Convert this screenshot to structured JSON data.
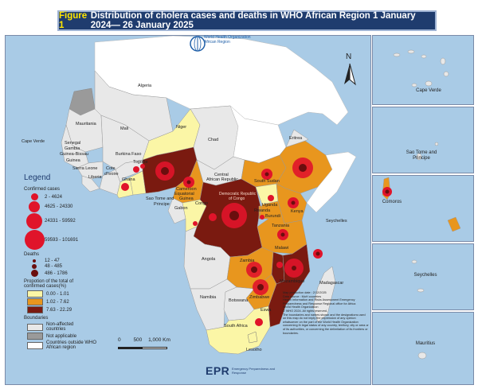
{
  "title": {
    "figure_label": "Figure 1",
    "text": "Distribution of cholera cases and deaths in WHO African Region 1 January 2024— 26 January 2025"
  },
  "who_logo": {
    "org": "World Health Organization",
    "region": "African Region",
    "icon": "who-emblem-icon"
  },
  "north_arrow": {
    "label": "N",
    "icon": "north-arrow-icon"
  },
  "map_labels": {
    "algeria": "Algeria",
    "mauritania": "Mauritania",
    "mali": "Mali",
    "niger": "Niger",
    "chad": "Chad",
    "senegal": "Senegal",
    "gambia": "Gambia",
    "guinea_bissau": "Guinea-Bissau",
    "guinea": "Guinea",
    "sierra_leone": "Sierra Leone",
    "liberia": "Liberia",
    "cote": "Cote",
    "divoire": "d'Ivoire",
    "burkina": "Burkina Faso",
    "ghana": "Ghana",
    "togo": "Togo",
    "benin": "Be",
    "cape_verde": "Cape Verde",
    "eritrea": "Eritrea",
    "car1": "Central",
    "car2": "African Republic",
    "cameroon": "Cameroon",
    "eq_guinea": "Equatorial",
    "eq_guinea2": "Guinea",
    "gabon": "Gabon",
    "congo": "Congo",
    "sao_tome1": "Sao Tome and",
    "sao_tome2": "Principe",
    "drc1": "Democratic Republic",
    "drc2": "of Congo",
    "south_sudan": "South Sudan",
    "uganda": "Uganda",
    "rwanda": "Rwanda",
    "burundi": "Burundi",
    "kenya": "Kenya",
    "tanzania": "Tanzania",
    "angola": "Angola",
    "zambia": "Zambia",
    "malawi": "Malawi",
    "mozambique": "Mozambique",
    "zimbabwe": "Zimbabwe",
    "namibia": "Namibia",
    "botswana": "Botswana",
    "madagascar": "Madagascar",
    "eswatini": "Eswa",
    "south_africa": "South Africa",
    "lesotho": "Lesotho",
    "seychelles": "Seychelles"
  },
  "insets": [
    {
      "label": "Cape Verde"
    },
    {
      "label": "Sao Tome and\nPrincipe"
    },
    {
      "label": "Comoros"
    },
    {
      "label": "Seychelles"
    },
    {
      "label": "Mauritius"
    }
  ],
  "legend": {
    "title": "Legend",
    "confirmed_cases_heading": "Confirmed cases",
    "confirmed_cases": [
      "2 - 4624",
      "4625 - 24330",
      "24331 - 59592",
      "59593 - 101691"
    ],
    "deaths_heading": "Deaths",
    "deaths": [
      "12 - 47",
      "48 - 485",
      "486 - 1786"
    ],
    "proportion_heading": "Propotion of the total of confirmed cases(%)",
    "proportion": [
      {
        "label": "0.00 - 1.01",
        "color": "#fbf6a6"
      },
      {
        "label": "1.02 - 7.62",
        "color": "#e8961e"
      },
      {
        "label": "7.63 - 22.29",
        "color": "#7a1a10"
      }
    ],
    "boundaries_heading": "Boundaries",
    "boundaries": [
      {
        "label": "Non-affected countries",
        "color": "#e8e8e8"
      },
      {
        "label": "Not applicable",
        "color": "#9a9a9a"
      },
      {
        "label": "Countries outside WHO African region",
        "color": "#ffffff"
      }
    ]
  },
  "note": {
    "production_date": "Map production date : 2/12/2025",
    "source": "Data source : MoH countries",
    "unit": "Health Information and Risks Assessment Emergency Preparedness and Response Regional office for Africa",
    "org": "World Health Organization",
    "copyright": "© WHO 2024. All rights reserved.",
    "disclaimer": "The boundaries and names shown and the designations used on this map do not imply the expression of any opinion whatsoever on the part of the World Health Organization concerning th legal status of any country, territory, city or area or of its authorities, or concerning the delimitation of its frontiers or boundaries."
  },
  "scale": {
    "labels": [
      "0",
      "500",
      "1,000 Km"
    ]
  },
  "footer": {
    "logo": "EPR",
    "subtitle": "Emergency Preparedness and Response"
  },
  "colors": {
    "sea": "#a9cbe6",
    "yellow": "#fbf6a6",
    "orange": "#e8961e",
    "dark": "#7a1a10",
    "non_affected": "#e8e8e8",
    "case_bubble": "#e0142a",
    "death_bubble": "#6b0e0e"
  }
}
